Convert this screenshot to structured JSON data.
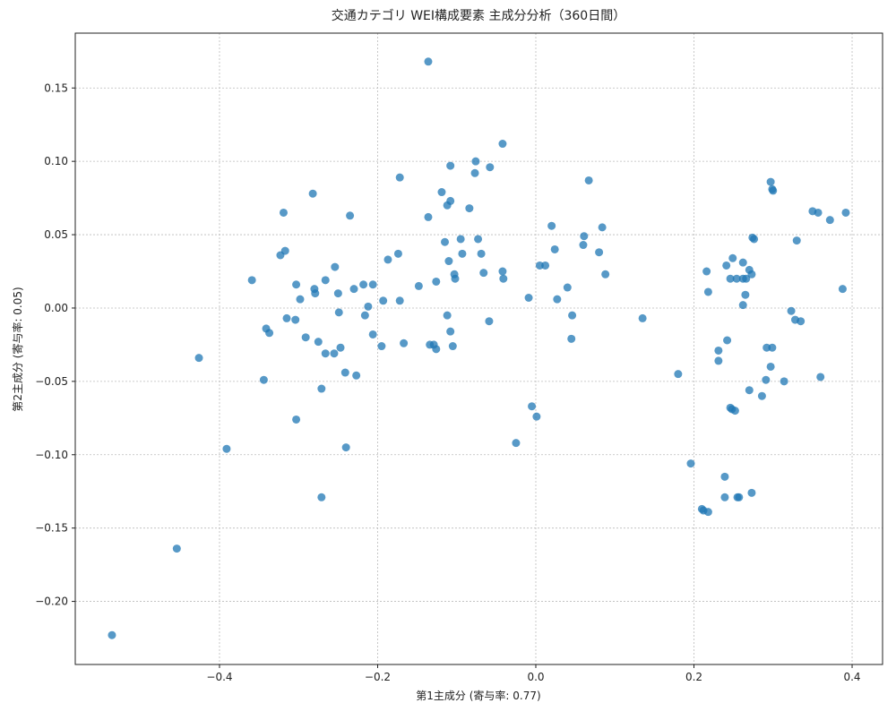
{
  "chart_data": {
    "type": "scatter",
    "title": "交通カテゴリ WEI構成要素 主成分分析（360日間）",
    "xlabel": "第1主成分 (寄与率: 0.77)",
    "ylabel": "第2主成分 (寄与率: 0.05)",
    "xlim": [
      -0.5824,
      0.4385
    ],
    "ylim": [
      -0.243,
      0.1874
    ],
    "xticks": [
      {
        "value": -0.4,
        "label": "−0.4"
      },
      {
        "value": -0.2,
        "label": "−0.2"
      },
      {
        "value": 0,
        "label": "0.0"
      },
      {
        "value": 0.2,
        "label": "0.2"
      },
      {
        "value": 0.4,
        "label": "0.4"
      }
    ],
    "yticks": [
      {
        "value": -0.2,
        "label": "−0.20"
      },
      {
        "value": -0.15,
        "label": "−0.15"
      },
      {
        "value": -0.1,
        "label": "−0.10"
      },
      {
        "value": -0.05,
        "label": "−0.05"
      },
      {
        "value": 0,
        "label": "0.00"
      },
      0.05,
      {
        "value": 0.1,
        "label": "0.10"
      },
      0.15
    ],
    "grid": true,
    "color": "#1f77b4",
    "x": [
      -0.136,
      -0.042,
      -0.108,
      -0.076,
      -0.058,
      -0.077,
      -0.172,
      0.067,
      0.297,
      0.299,
      0.3,
      -0.282,
      -0.119,
      -0.108,
      -0.112,
      -0.084,
      -0.319,
      -0.235,
      -0.136,
      0.35,
      0.357,
      0.372,
      0.392,
      0.02,
      0.084,
      0.061,
      -0.115,
      -0.095,
      -0.073,
      0.274,
      0.276,
      0.33,
      0.06,
      0.024,
      0.08,
      -0.317,
      -0.323,
      -0.174,
      -0.093,
      -0.069,
      -0.187,
      -0.11,
      0.249,
      -0.254,
      0.005,
      0.012,
      0.241,
      0.262,
      0.27,
      -0.103,
      -0.066,
      -0.042,
      0.088,
      0.216,
      0.273,
      -0.359,
      -0.266,
      -0.102,
      -0.041,
      0.246,
      0.254,
      0.262,
      0.266,
      -0.303,
      -0.218,
      -0.206,
      -0.126,
      -0.148,
      -0.28,
      -0.23,
      0.04,
      0.388,
      -0.25,
      -0.279,
      0.218,
      0.265,
      -0.009,
      0.027,
      -0.298,
      -0.193,
      -0.172,
      -0.212,
      0.262,
      -0.249,
      0.323,
      -0.112,
      -0.216,
      0.046,
      -0.315,
      -0.304,
      0.135,
      -0.059,
      0.328,
      0.335,
      -0.341,
      -0.337,
      -0.108,
      -0.206,
      -0.291,
      0.045,
      -0.275,
      0.242,
      -0.167,
      -0.195,
      -0.134,
      -0.129,
      -0.105,
      -0.247,
      -0.126,
      0.292,
      0.299,
      -0.266,
      -0.255,
      0.231,
      -0.426,
      0.231,
      0.297,
      -0.241,
      -0.227,
      0.18,
      -0.344,
      0.291,
      0.314,
      0.36,
      -0.271,
      0.27,
      0.286,
      -0.005,
      0.246,
      0.248,
      0.252,
      0.001,
      -0.303,
      -0.025,
      -0.391,
      -0.24,
      0.196,
      0.239,
      -0.271,
      0.239,
      0.255,
      0.257,
      0.273,
      0.21,
      0.212,
      0.218,
      -0.454,
      -0.536
    ],
    "values": [
      0.168,
      0.112,
      0.097,
      0.1,
      0.096,
      0.092,
      0.089,
      0.087,
      0.086,
      0.081,
      0.08,
      0.078,
      0.079,
      0.073,
      0.07,
      0.068,
      0.065,
      0.063,
      0.062,
      0.066,
      0.065,
      0.06,
      0.065,
      0.056,
      0.055,
      0.049,
      0.045,
      0.047,
      0.047,
      0.048,
      0.047,
      0.046,
      0.043,
      0.04,
      0.038,
      0.039,
      0.036,
      0.037,
      0.037,
      0.037,
      0.033,
      0.032,
      0.034,
      0.028,
      0.029,
      0.029,
      0.029,
      0.031,
      0.026,
      0.023,
      0.024,
      0.025,
      0.023,
      0.025,
      0.023,
      0.019,
      0.019,
      0.02,
      0.02,
      0.02,
      0.02,
      0.02,
      0.02,
      0.016,
      0.016,
      0.016,
      0.018,
      0.015,
      0.013,
      0.013,
      0.014,
      0.013,
      0.01,
      0.01,
      0.011,
      0.009,
      0.007,
      0.006,
      0.006,
      0.005,
      0.005,
      0.001,
      0.002,
      -0.003,
      -0.002,
      -0.005,
      -0.005,
      -0.005,
      -0.007,
      -0.008,
      -0.007,
      -0.009,
      -0.008,
      -0.009,
      -0.014,
      -0.017,
      -0.016,
      -0.018,
      -0.02,
      -0.021,
      -0.023,
      -0.022,
      -0.024,
      -0.026,
      -0.025,
      -0.025,
      -0.026,
      -0.027,
      -0.028,
      -0.027,
      -0.027,
      -0.031,
      -0.031,
      -0.029,
      -0.034,
      -0.036,
      -0.04,
      -0.044,
      -0.046,
      -0.045,
      -0.049,
      -0.049,
      -0.05,
      -0.047,
      -0.055,
      -0.056,
      -0.06,
      -0.067,
      -0.068,
      -0.069,
      -0.07,
      -0.074,
      -0.076,
      -0.092,
      -0.096,
      -0.095,
      -0.106,
      -0.115,
      -0.129,
      -0.129,
      -0.129,
      -0.129,
      -0.126,
      -0.137,
      -0.138,
      -0.139,
      -0.164,
      -0.223
    ]
  }
}
